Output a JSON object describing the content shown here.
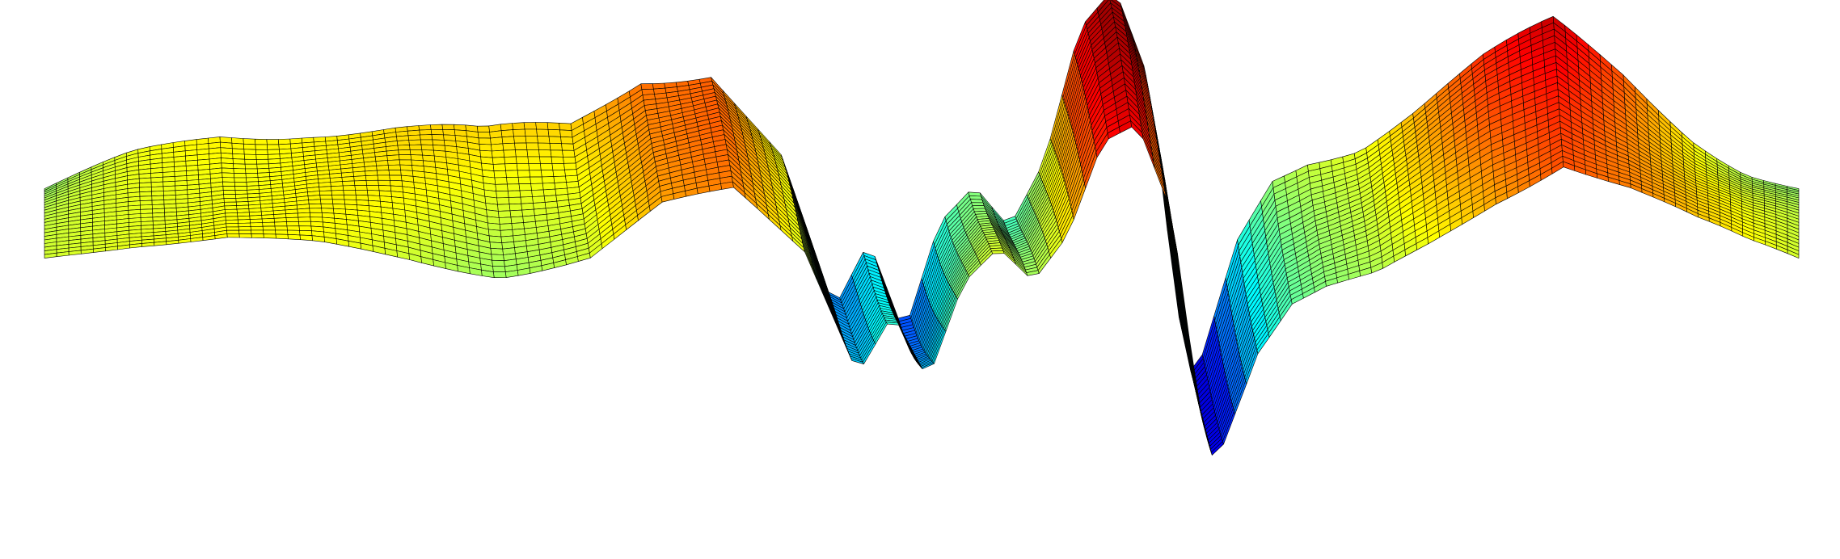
{
  "chart_data": {
    "type": "surface",
    "colormap": "jet",
    "colors": {
      "background": "#ffffff",
      "edge": "#000000"
    },
    "axes_visible": false,
    "grid": false,
    "z_range": [
      -1,
      1
    ],
    "x_profile_points": [
      [
        0.0,
        0.1
      ],
      [
        0.05,
        0.22
      ],
      [
        0.1,
        0.3
      ],
      [
        0.15,
        0.3
      ],
      [
        0.2,
        0.26
      ],
      [
        0.25,
        0.2
      ],
      [
        0.3,
        0.28
      ],
      [
        0.34,
        0.55
      ],
      [
        0.38,
        0.6
      ],
      [
        0.42,
        0.2
      ],
      [
        0.45,
        -0.55
      ],
      [
        0.47,
        -0.2
      ],
      [
        0.49,
        -0.62
      ],
      [
        0.51,
        -0.05
      ],
      [
        0.53,
        0.15
      ],
      [
        0.55,
        -0.05
      ],
      [
        0.57,
        0.25
      ],
      [
        0.59,
        0.85
      ],
      [
        0.61,
        1.0
      ],
      [
        0.63,
        0.5
      ],
      [
        0.645,
        -0.6
      ],
      [
        0.655,
        -1.0
      ],
      [
        0.68,
        -0.3
      ],
      [
        0.7,
        0.0
      ],
      [
        0.72,
        0.1
      ],
      [
        0.75,
        0.18
      ],
      [
        0.78,
        0.35
      ],
      [
        0.82,
        0.6
      ],
      [
        0.86,
        0.8
      ],
      [
        0.9,
        0.6
      ],
      [
        0.94,
        0.35
      ],
      [
        0.97,
        0.2
      ],
      [
        1.0,
        0.1
      ]
    ]
  }
}
